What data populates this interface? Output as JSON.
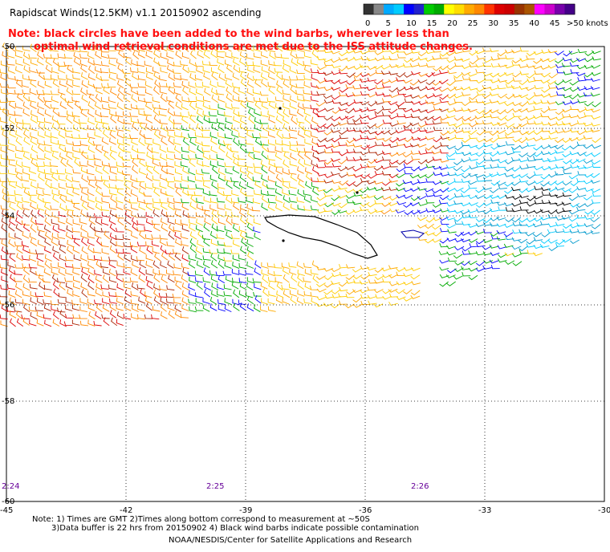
{
  "header": {
    "title": "Rapidscat Winds(12.5KM) v1.1 20150902 ascending",
    "note_line1": "Note: black circles have been added to the wind barbs, wherever less than",
    "note_line2": "optimal wind retrieval conditions are met due to the ISS attitude changes."
  },
  "legend": {
    "unit": ">50 knots",
    "ticks": [
      "0",
      "5",
      "10",
      "15",
      "20",
      "25",
      "30",
      "35",
      "40",
      "45"
    ],
    "colors": [
      "#333333",
      "#888888",
      "#00aaff",
      "#00ccff",
      "#0000ff",
      "#2222cc",
      "#00cc00",
      "#00aa00",
      "#ffff00",
      "#ffdd00",
      "#ffaa00",
      "#ff8800",
      "#ff3300",
      "#dd0000",
      "#cc0000",
      "#993300",
      "#aa5500",
      "#ff00ff",
      "#cc00cc",
      "#7700aa",
      "#440088"
    ]
  },
  "map": {
    "lat_labels": [
      "-50",
      "-52",
      "-54",
      "-56",
      "-58",
      "-60"
    ],
    "lon_labels": [
      "-45",
      "-42",
      "-39",
      "-36",
      "-33",
      "-30"
    ],
    "time_labels": [
      "2:24",
      "2:25",
      "2:26"
    ],
    "lat_values": [
      -50,
      -52,
      -54,
      -56,
      -58,
      -60
    ],
    "lon_values": [
      -45,
      -42,
      -39,
      -36,
      -33,
      -30
    ]
  },
  "footer": {
    "line1": "Note: 1) Times are GMT 2)Times along bottom correspond to measurement at ~50S",
    "line2": "3)Data buffer is 22 hrs from 20150902 4) Black wind barbs indicate possible contamination",
    "line3": "NOAA/NESDIS/Center for Satellite Applications and Research"
  },
  "barb_colors": {
    "orange": "#ff8800",
    "yellow": "#ffcc00",
    "gold": "#ffaa00",
    "red": "#dd0000",
    "dark_red": "#aa2200",
    "green": "#00aa00",
    "blue": "#0000ff",
    "cyan": "#00ccff",
    "teal": "#0099cc",
    "black": "#000000"
  }
}
